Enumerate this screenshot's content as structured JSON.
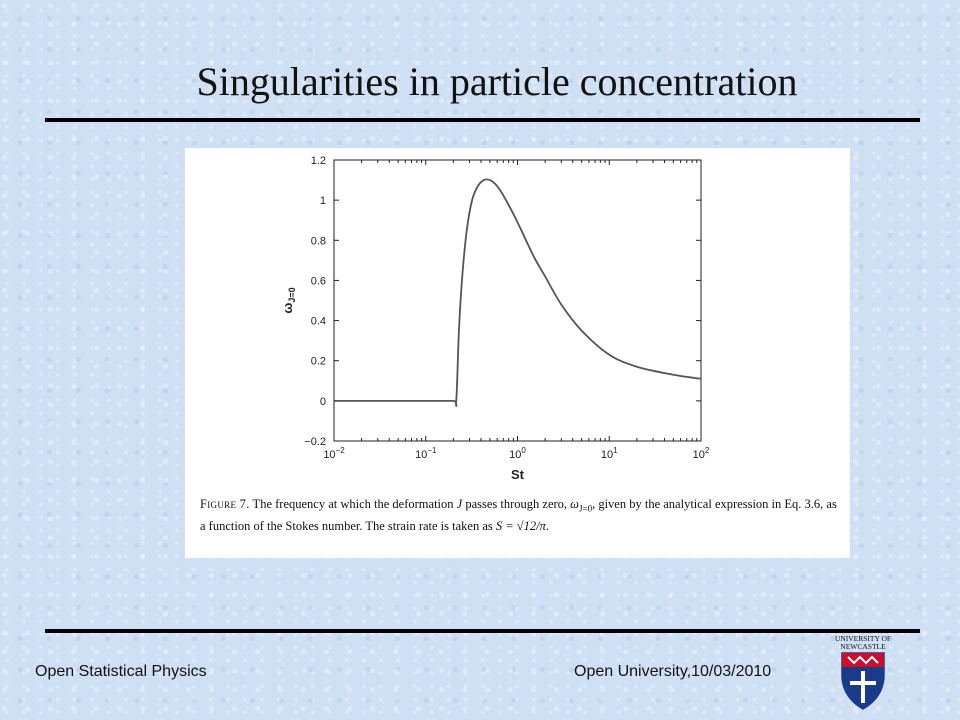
{
  "slide": {
    "title": "Singularities in particle concentration",
    "footer_left": "Open Statistical Physics",
    "footer_right": "Open University,10/03/2010",
    "logo_text": [
      "UNIVERSITY OF",
      "NEWCASTLE"
    ]
  },
  "caption": {
    "figure_label": "Figure 7.",
    "text_1": " The frequency at which the deformation ",
    "var_J": "J",
    "text_2": " passes through zero, ",
    "omega": "ω",
    "omega_sub": "J=0",
    "text_3": ", given by the analytical expression in Eq. 3.6, as a function of the Stokes number. The strain rate is taken as ",
    "strain_expr": "S = √12/π",
    "text_4": "."
  },
  "chart_data": {
    "type": "line",
    "title": "",
    "xlabel": "St",
    "ylabel": "ω_{J=0}",
    "xscale": "log",
    "xlim": [
      0.01,
      100
    ],
    "ylim": [
      -0.2,
      1.2
    ],
    "xticks": [
      0.01,
      0.1,
      1,
      10,
      100
    ],
    "xtick_labels": [
      [
        "10",
        "−2"
      ],
      [
        "10",
        "−1"
      ],
      [
        "10",
        "0"
      ],
      [
        "10",
        "1"
      ],
      [
        "10",
        "2"
      ]
    ],
    "yticks": [
      -0.2,
      0,
      0.2,
      0.4,
      0.6,
      0.8,
      1,
      1.2
    ],
    "ytick_labels": [
      "−0.2",
      "0",
      "0.2",
      "0.4",
      "0.6",
      "0.8",
      "1",
      "1.2"
    ],
    "grid": false,
    "series": [
      {
        "x": [
          0.01,
          0.05,
          0.1,
          0.2,
          0.215,
          0.23,
          0.25,
          0.28,
          0.32,
          0.37,
          0.43,
          0.5,
          0.6,
          0.75,
          1,
          1.5,
          2,
          3,
          5,
          10,
          20,
          50,
          100
        ],
        "y": [
          0,
          0,
          0,
          0,
          0,
          0.35,
          0.62,
          0.85,
          1.0,
          1.07,
          1.1,
          1.1,
          1.07,
          1.0,
          0.89,
          0.72,
          0.62,
          0.48,
          0.35,
          0.23,
          0.17,
          0.13,
          0.11
        ],
        "color": "#555555"
      }
    ]
  }
}
